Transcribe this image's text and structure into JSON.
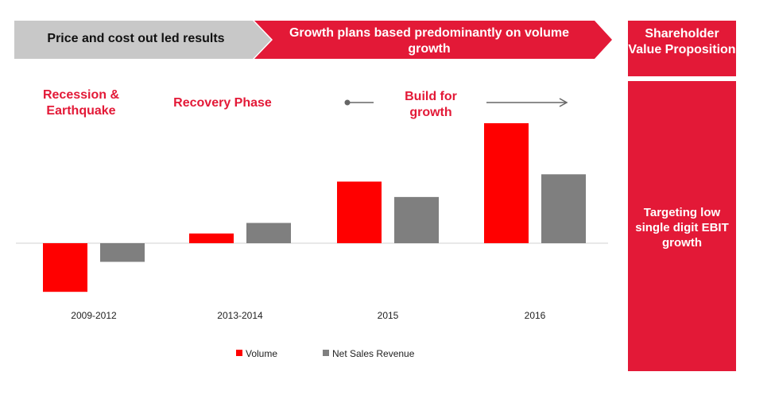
{
  "banner": {
    "left": "Price and cost out led results",
    "middle": "Growth plans based predominantly on volume growth",
    "right": "Shareholder Value Proposition"
  },
  "side_panel": {
    "text": "Targeting low single digit EBIT growth"
  },
  "phases": {
    "recession": "Recession & Earthquake",
    "recovery": "Recovery Phase",
    "build": "Build for growth"
  },
  "colors": {
    "red": "#ff0000",
    "accent_red": "#e31937",
    "grey": "#7f7f7f",
    "banner_grey": "#c8c8c8"
  },
  "chart_data": {
    "type": "bar",
    "title": "",
    "xlabel": "",
    "ylabel": "",
    "categories": [
      "2009-2012",
      "2013-2014",
      "2015",
      "2016"
    ],
    "series": [
      {
        "name": "Volume",
        "values": [
          -6,
          1.2,
          7.6,
          14.8
        ]
      },
      {
        "name": "Net Sales Revenue",
        "values": [
          -2.3,
          2.5,
          5.7,
          8.5
        ]
      }
    ],
    "ylim": [
      -7,
      16
    ],
    "grid": false,
    "legend_position": "bottom"
  }
}
